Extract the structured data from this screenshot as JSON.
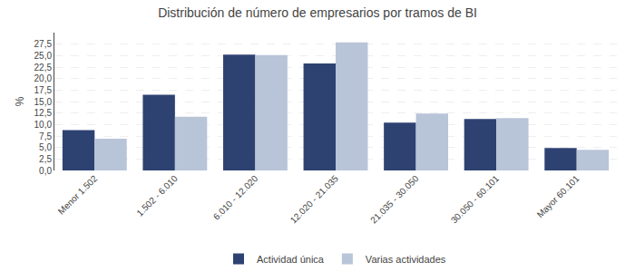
{
  "chart_data": {
    "type": "bar",
    "title": "Distribución de número de empresarios por tramos de BI",
    "categories": [
      "Menor 1.502",
      "1.502 - 6.010",
      "6.010 - 12.020",
      "12.020 - 21.035",
      "21.035 - 30.050",
      "30.050 - 60.101",
      "Mayor 60.101"
    ],
    "series": [
      {
        "name": "Actividad única",
        "color": "#2E4272",
        "values": [
          8.8,
          16.5,
          25.2,
          23.3,
          10.4,
          11.2,
          4.9
        ]
      },
      {
        "name": "Varias actividades",
        "color": "#B8C4D8",
        "values": [
          6.9,
          11.7,
          25.1,
          27.9,
          12.4,
          11.4,
          4.5
        ]
      }
    ],
    "ylabel": "%",
    "ylim": [
      0,
      30
    ],
    "yticks": [
      {
        "value": 0.0,
        "label": "0,0"
      },
      {
        "value": 2.5,
        "label": "2,5"
      },
      {
        "value": 5.0,
        "label": "5,0"
      },
      {
        "value": 7.5,
        "label": "7,5"
      },
      {
        "value": 10.0,
        "label": "10,0"
      },
      {
        "value": 12.5,
        "label": "12,5"
      },
      {
        "value": 15.0,
        "label": "15,0"
      },
      {
        "value": 17.5,
        "label": "17,5"
      },
      {
        "value": 20.0,
        "label": "20,0"
      },
      {
        "value": 22.5,
        "label": "22,5"
      },
      {
        "value": 25.0,
        "label": "25,0"
      },
      {
        "value": 27.5,
        "label": "27,5"
      }
    ],
    "grid": true,
    "legend": "bottom"
  }
}
